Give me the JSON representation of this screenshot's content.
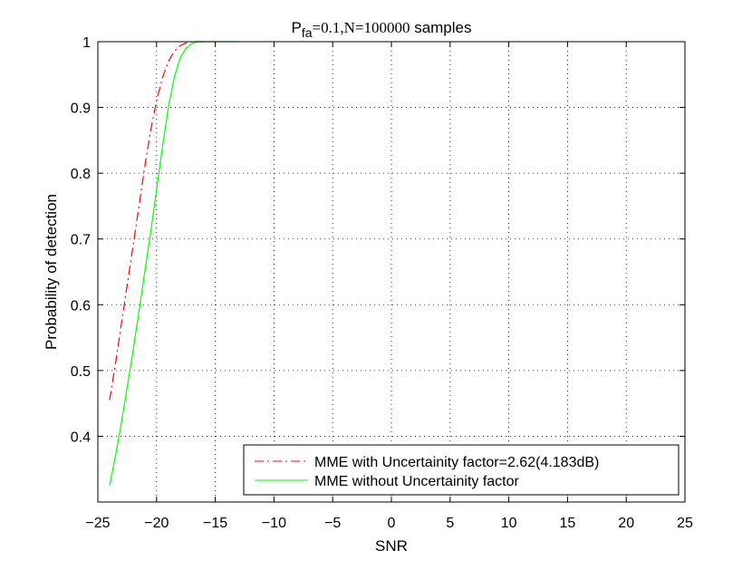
{
  "chart_data": {
    "type": "line",
    "title": {
      "main": "P",
      "sub": "fa",
      "rest": "=0.1,N=100000",
      "tail": " samples"
    },
    "xlabel": "SNR",
    "ylabel": "Probability of detection",
    "xlim": [
      -25,
      25
    ],
    "ylim": [
      0.3,
      1
    ],
    "xticks": [
      -25,
      -20,
      -15,
      -10,
      -5,
      0,
      5,
      10,
      15,
      20,
      25
    ],
    "xtick_labels": [
      "−25",
      "−20",
      "−15",
      "−10",
      "−5",
      "0",
      "5",
      "10",
      "15",
      "20",
      "25"
    ],
    "yticks": [
      0.4,
      0.5,
      0.6,
      0.7,
      0.8,
      0.9,
      1
    ],
    "ytick_labels": [
      "0.4",
      "0.5",
      "0.6",
      "0.7",
      "0.8",
      "0.9",
      "1"
    ],
    "grid": true,
    "legend_position": "bottom-right",
    "series": [
      {
        "name": "MME with Uncertainity factor=2.62(4.183dB)",
        "color": "#ff0000",
        "style": "dashdot",
        "x": [
          -24,
          -23.5,
          -23,
          -22.5,
          -22,
          -21.5,
          -21,
          -20.5,
          -20,
          -19.5,
          -19,
          -18.5,
          -18,
          -17.5,
          -17,
          -16.5,
          -16,
          -15.5,
          -15
        ],
        "y": [
          0.455,
          0.51,
          0.57,
          0.63,
          0.69,
          0.75,
          0.81,
          0.865,
          0.91,
          0.945,
          0.97,
          0.985,
          0.994,
          0.998,
          1.0,
          1.0,
          1.0,
          1.0,
          1.0
        ]
      },
      {
        "name": "MME without Uncertainity factor",
        "color": "#00ff00",
        "style": "solid",
        "x": [
          -24,
          -23.5,
          -23,
          -22.5,
          -22,
          -21.5,
          -21,
          -20.5,
          -20,
          -19.5,
          -19,
          -18.5,
          -18,
          -17.5,
          -17,
          -16.5,
          -16,
          -15.5,
          -15,
          -14.5,
          -14,
          -13.5,
          -13
        ],
        "y": [
          0.325,
          0.37,
          0.42,
          0.475,
          0.53,
          0.59,
          0.65,
          0.71,
          0.775,
          0.84,
          0.9,
          0.945,
          0.975,
          0.99,
          0.997,
          1.0,
          1.0,
          1.0,
          1.0,
          1.0,
          1.0,
          1.0,
          1.0
        ]
      }
    ]
  }
}
